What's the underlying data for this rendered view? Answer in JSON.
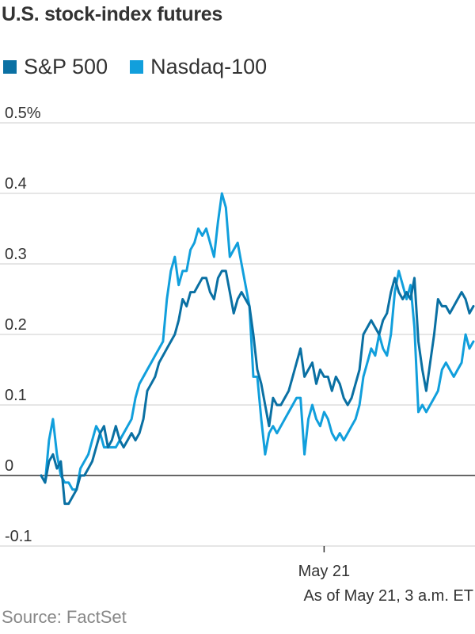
{
  "title": "U.S. stock-index futures",
  "source": "Source: FactSet",
  "note": "As of May 21, 3 a.m. ET",
  "colors": {
    "sp500": "#0a70a3",
    "nasdaq": "#119fdc",
    "grid": "#cccccc",
    "zero": "#333333",
    "text": "#333333",
    "source": "#888888"
  },
  "legend": [
    {
      "name": "S&P 500",
      "color": "#0a70a3"
    },
    {
      "name": "Nasdaq-100",
      "color": "#119fdc"
    }
  ],
  "chart_data": {
    "type": "line",
    "title": "U.S. stock-index futures",
    "xlabel": "",
    "ylabel": "",
    "ylim": [
      -0.1,
      0.5
    ],
    "y_ticks": [
      {
        "value": 0.5,
        "label": "0.5%"
      },
      {
        "value": 0.4,
        "label": "0.4"
      },
      {
        "value": 0.3,
        "label": "0.3"
      },
      {
        "value": 0.2,
        "label": "0.2"
      },
      {
        "value": 0.1,
        "label": "0.1"
      },
      {
        "value": 0,
        "label": "0"
      },
      {
        "value": -0.1,
        "label": "-0.1"
      }
    ],
    "x_ticks": [
      {
        "index": 72,
        "label": "May 21"
      }
    ],
    "legend_position": "top-left",
    "grid": true,
    "series": [
      {
        "name": "S&P 500",
        "color": "#0a70a3",
        "values": [
          0.0,
          -0.01,
          0.02,
          0.03,
          0.01,
          0.02,
          -0.04,
          -0.04,
          -0.03,
          -0.02,
          0.0,
          0.0,
          0.01,
          0.02,
          0.04,
          0.06,
          0.07,
          0.04,
          0.05,
          0.07,
          0.05,
          0.04,
          0.05,
          0.06,
          0.05,
          0.06,
          0.08,
          0.12,
          0.13,
          0.14,
          0.16,
          0.17,
          0.18,
          0.19,
          0.2,
          0.22,
          0.25,
          0.24,
          0.26,
          0.26,
          0.27,
          0.28,
          0.28,
          0.26,
          0.25,
          0.28,
          0.29,
          0.29,
          0.26,
          0.23,
          0.25,
          0.26,
          0.25,
          0.24,
          0.2,
          0.15,
          0.13,
          0.1,
          0.07,
          0.11,
          0.1,
          0.1,
          0.11,
          0.12,
          0.14,
          0.16,
          0.18,
          0.14,
          0.15,
          0.16,
          0.13,
          0.15,
          0.14,
          0.14,
          0.12,
          0.14,
          0.13,
          0.11,
          0.1,
          0.11,
          0.13,
          0.15,
          0.2,
          0.21,
          0.22,
          0.21,
          0.2,
          0.22,
          0.23,
          0.26,
          0.28,
          0.26,
          0.25,
          0.26,
          0.25,
          0.28,
          0.19,
          0.15,
          0.12,
          0.16,
          0.2,
          0.25,
          0.24,
          0.24,
          0.23,
          0.24,
          0.25,
          0.26,
          0.25,
          0.23,
          0.24
        ]
      },
      {
        "name": "Nasdaq-100",
        "color": "#119fdc",
        "values": [
          0.0,
          -0.01,
          0.05,
          0.08,
          0.03,
          0.0,
          -0.01,
          -0.01,
          -0.02,
          -0.02,
          0.01,
          0.02,
          0.03,
          0.05,
          0.07,
          0.06,
          0.04,
          0.04,
          0.04,
          0.04,
          0.05,
          0.06,
          0.07,
          0.08,
          0.11,
          0.13,
          0.14,
          0.15,
          0.16,
          0.17,
          0.18,
          0.19,
          0.25,
          0.29,
          0.31,
          0.27,
          0.29,
          0.29,
          0.32,
          0.33,
          0.35,
          0.34,
          0.35,
          0.33,
          0.31,
          0.36,
          0.4,
          0.38,
          0.31,
          0.32,
          0.33,
          0.3,
          0.27,
          0.24,
          0.14,
          0.14,
          0.08,
          0.03,
          0.06,
          0.07,
          0.06,
          0.07,
          0.08,
          0.09,
          0.1,
          0.11,
          0.11,
          0.03,
          0.08,
          0.1,
          0.08,
          0.07,
          0.09,
          0.08,
          0.06,
          0.05,
          0.06,
          0.05,
          0.06,
          0.07,
          0.08,
          0.1,
          0.14,
          0.16,
          0.18,
          0.17,
          0.2,
          0.18,
          0.17,
          0.2,
          0.26,
          0.29,
          0.27,
          0.25,
          0.27,
          0.21,
          0.09,
          0.1,
          0.09,
          0.1,
          0.11,
          0.12,
          0.15,
          0.16,
          0.15,
          0.14,
          0.15,
          0.16,
          0.2,
          0.18,
          0.19
        ]
      }
    ]
  }
}
